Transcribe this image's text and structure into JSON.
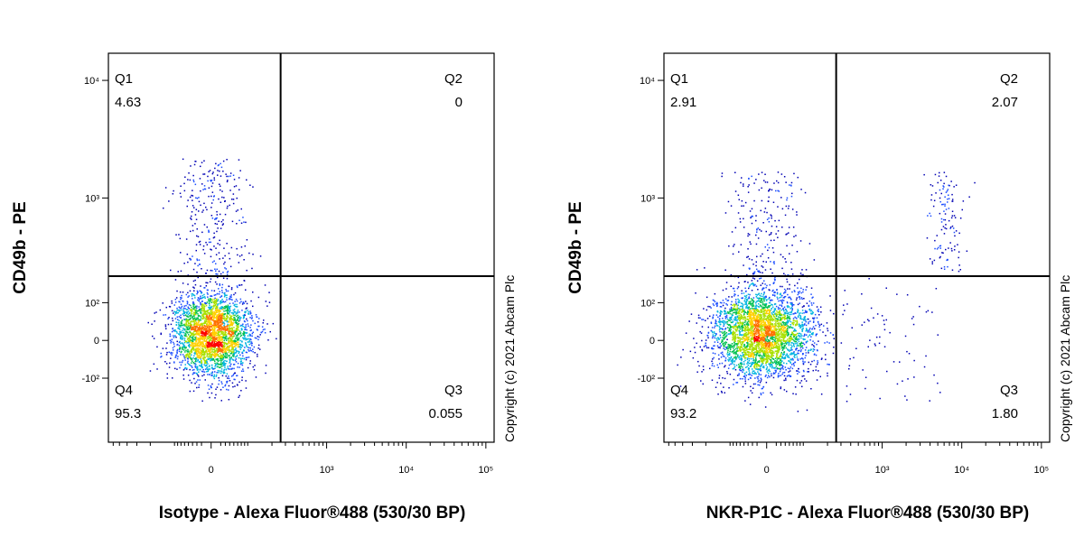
{
  "chart_data": [
    {
      "type": "quadrant",
      "x_label": "Isotype - Alexa Fluor®488 (530/30 BP)",
      "y_label": "CD49b - PE",
      "annotation": "Copyright (c) 2021 Abcam Plc",
      "quadrants": [
        "Q1",
        "Q2",
        "Q3",
        "Q4"
      ],
      "values": [
        4.63,
        0,
        0.055,
        95.3
      ],
      "gate": {
        "x": 260,
        "y": 200
      },
      "xlim": [
        -690,
        127000
      ],
      "ylim": [
        -445,
        17000
      ],
      "xticks": [
        0,
        {
          "value": 1000,
          "label": "10³"
        },
        {
          "value": 10000,
          "label": "10⁴"
        },
        {
          "value": 100000,
          "label": "10⁵"
        }
      ],
      "yticks": [
        {
          "value": -100,
          "label": "-10²"
        },
        0,
        {
          "value": 100,
          "label": "10²"
        },
        {
          "value": 1000,
          "label": "10³"
        },
        {
          "value": 10000,
          "label": "10⁴"
        }
      ]
    },
    {
      "type": "quadrant",
      "x_label": "NKR-P1C - Alexa Fluor®488 (530/30 BP)",
      "y_label": "CD49b - PE",
      "annotation": "Copyright (c) 2021 Abcam Plc",
      "quadrants": [
        "Q1",
        "Q2",
        "Q3",
        "Q4"
      ],
      "values": [
        2.91,
        2.07,
        1.8,
        93.2
      ],
      "value_labels": [
        "2.91",
        "2.07",
        "1.80",
        "93.2"
      ],
      "gate": {
        "x": 260,
        "y": 200
      },
      "xlim": [
        -690,
        127000
      ],
      "ylim": [
        -445,
        17000
      ],
      "xticks": [
        0,
        {
          "value": 1000,
          "label": "10³"
        },
        {
          "value": 10000,
          "label": "10⁴"
        },
        {
          "value": 100000,
          "label": "10⁵"
        }
      ],
      "yticks": [
        {
          "value": -100,
          "label": "-10²"
        },
        0,
        {
          "value": 100,
          "label": "10²"
        },
        {
          "value": 1000,
          "label": "10³"
        },
        {
          "value": 10000,
          "label": "10⁴"
        }
      ]
    }
  ]
}
